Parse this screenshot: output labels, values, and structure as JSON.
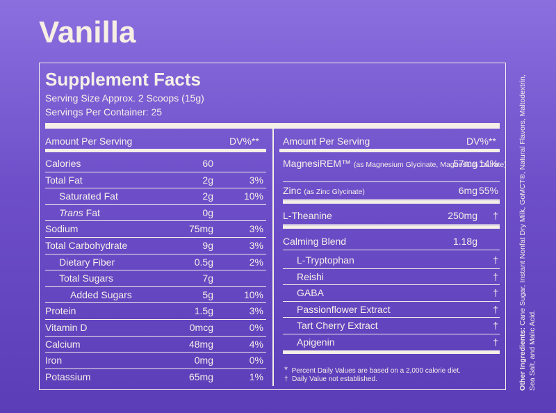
{
  "flavor": "Vanilla",
  "title": "Supplement Facts",
  "serving_size": "Serving Size Approx. 2 Scoops (15g)",
  "servings_per_container": "Servings Per Container: 25",
  "col_headers": {
    "amount_left": "Amount Per Serving",
    "dv_left": "DV%**",
    "amount_right": "Amount Per Serving",
    "dv_right": "DV%**"
  },
  "left_rows": [
    {
      "name": "Calories",
      "amount": "60",
      "dv": ""
    },
    {
      "name": "Total Fat",
      "amount": "2g",
      "dv": "3%"
    },
    {
      "name": "Saturated Fat",
      "amount": "2g",
      "dv": "10%"
    },
    {
      "name": "Trans",
      "name_suffix": " Fat",
      "amount": "0g",
      "dv": ""
    },
    {
      "name": "Sodium",
      "amount": "75mg",
      "dv": "3%"
    },
    {
      "name": "Total Carbohydrate",
      "amount": "9g",
      "dv": "3%"
    },
    {
      "name": "Dietary Fiber",
      "amount": "0.5g",
      "dv": "2%"
    },
    {
      "name": "Total Sugars",
      "amount": "7g",
      "dv": ""
    },
    {
      "name": "Added Sugars",
      "amount": "5g",
      "dv": "10%"
    },
    {
      "name": "Protein",
      "amount": "1.5g",
      "dv": "3%"
    },
    {
      "name": "Vitamin D",
      "amount": "0mcg",
      "dv": "0%"
    },
    {
      "name": "Calcium",
      "amount": "48mg",
      "dv": "4%"
    },
    {
      "name": "Iron",
      "amount": "0mg",
      "dv": "0%"
    },
    {
      "name": "Potassium",
      "amount": "65mg",
      "dv": "1%"
    }
  ],
  "right_rows": {
    "magnesirem": {
      "name": "MagnesiREM™",
      "note": "(as Magnesium Glycinate, Magnesium Taurate)",
      "amount": "57mg",
      "dv": "14%"
    },
    "zinc": {
      "name": "Zinc",
      "note": "(as Zinc Glycinate)",
      "amount": "6mg",
      "dv": "55%"
    },
    "theanine": {
      "name": "L-Theanine",
      "amount": "250mg",
      "dv": "†"
    },
    "calming": {
      "name": "Calming Blend",
      "amount": "1.18g",
      "dv": ""
    },
    "blend_items": [
      {
        "name": "L-Tryptophan",
        "dv": "†"
      },
      {
        "name": "Reishi",
        "dv": "†"
      },
      {
        "name": "GABA",
        "dv": "†"
      },
      {
        "name": "Passionflower Extract",
        "dv": "†"
      },
      {
        "name": "Tart Cherry Extract",
        "dv": "†"
      },
      {
        "name": "Apigenin",
        "dv": "†"
      }
    ]
  },
  "footnotes": {
    "star_symbol": "*",
    "star_text": "Percent Daily Values are based on a 2,000 calorie diet.",
    "dagger_symbol": "†",
    "dagger_text": "Daily Value not established."
  },
  "other_ingredients": {
    "label": "Other Ingredients:",
    "text": " Cane Sugar, Instant Nonfat Dry Milk, GoMCT®, Natural Flavors, Maltodextrin, Sea Salt, and Malic Acid."
  }
}
